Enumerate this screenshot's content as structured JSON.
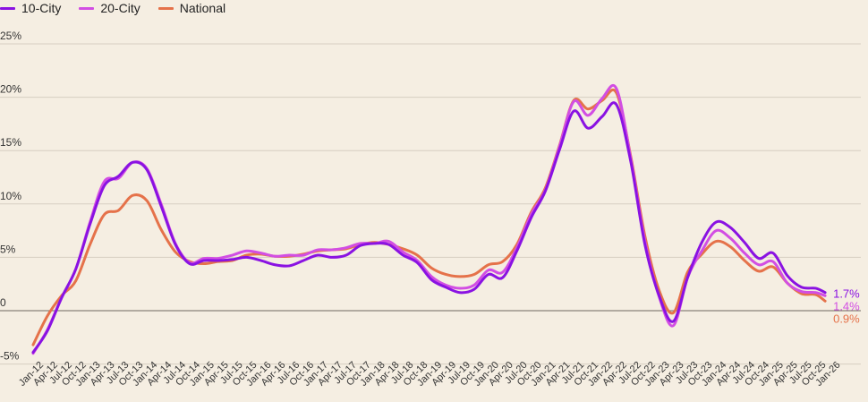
{
  "chart_data": {
    "type": "line",
    "title": "",
    "xlabel": "",
    "ylabel": "",
    "ylim": [
      -5,
      25
    ],
    "y_ticks": [
      "25%",
      "20%",
      "15%",
      "10%",
      "5%",
      "0",
      "-5%"
    ],
    "y_tick_values": [
      25,
      20,
      15,
      10,
      5,
      0,
      -5
    ],
    "x_tick_labels": [
      "Jan-12",
      "Apr-12",
      "Jul-12",
      "Oct-12",
      "Jan-13",
      "Apr-13",
      "Jul-13",
      "Oct-13",
      "Jan-14",
      "Apr-14",
      "Jul-14",
      "Oct-14",
      "Jan-15",
      "Apr-15",
      "Jul-15",
      "Oct-15",
      "Jan-16",
      "Apr-16",
      "Jul-16",
      "Oct-16",
      "Jan-17",
      "Apr-17",
      "Jul-17",
      "Oct-17",
      "Jan-18",
      "Apr-18",
      "Jul-18",
      "Oct-18",
      "Jan-19",
      "Apr-19",
      "Jul-19",
      "Oct-19",
      "Jan-20",
      "Apr-20",
      "Jul-20",
      "Oct-20",
      "Jan-21",
      "Apr-21",
      "Jul-21",
      "Oct-21",
      "Jan-22",
      "Apr-22",
      "Jul-22",
      "Oct-22",
      "Jan-23",
      "Apr-23",
      "Jul-23",
      "Oct-23",
      "Jan-24",
      "Apr-24",
      "Jul-24",
      "Oct-24",
      "Jan-25",
      "Apr-25",
      "Jul-25",
      "Oct-25",
      "Jan-26"
    ],
    "x": [
      "Jan-12",
      "Apr-12",
      "Jul-12",
      "Oct-12",
      "Jan-13",
      "Apr-13",
      "Jul-13",
      "Oct-13",
      "Jan-14",
      "Apr-14",
      "Jul-14",
      "Oct-14",
      "Jan-15",
      "Apr-15",
      "Jul-15",
      "Oct-15",
      "Jan-16",
      "Apr-16",
      "Jul-16",
      "Oct-16",
      "Jan-17",
      "Apr-17",
      "Jul-17",
      "Oct-17",
      "Jan-18",
      "Apr-18",
      "Jul-18",
      "Oct-18",
      "Jan-19",
      "Apr-19",
      "Jul-19",
      "Oct-19",
      "Jan-20",
      "Apr-20",
      "Jul-20",
      "Oct-20",
      "Jan-21",
      "Apr-21",
      "Jul-21",
      "Oct-21",
      "Jan-22",
      "Apr-22",
      "Jul-22",
      "Oct-22",
      "Jan-23",
      "Apr-23",
      "Jul-23",
      "Oct-23",
      "Jan-24",
      "Apr-24",
      "Jul-24",
      "Oct-24",
      "Jan-25",
      "Apr-25",
      "Jul-25",
      "Oct-25",
      "Dec-25"
    ],
    "grid": true,
    "legend_position": "top-left",
    "series": [
      {
        "name": "10-City",
        "color": "#8a12e2",
        "end_label": "1.7%",
        "values": [
          -3.9,
          -1.9,
          1.2,
          3.9,
          8.1,
          11.7,
          12.6,
          13.9,
          13.2,
          9.8,
          6.2,
          4.4,
          4.7,
          4.7,
          4.8,
          5.0,
          4.7,
          4.3,
          4.2,
          4.7,
          5.2,
          5.0,
          5.2,
          6.1,
          6.3,
          6.2,
          5.2,
          4.5,
          2.9,
          2.2,
          1.7,
          2.0,
          3.4,
          3.1,
          5.6,
          8.7,
          11.2,
          15.1,
          18.7,
          17.1,
          18.2,
          19.3,
          14.0,
          6.2,
          1.4,
          -1.0,
          3.1,
          6.4,
          8.3,
          7.8,
          6.4,
          4.9,
          5.4,
          3.3,
          2.2,
          2.1,
          1.7
        ]
      },
      {
        "name": "20-City",
        "color": "#d24ee3",
        "end_label": "1.4%",
        "values": [
          -4.0,
          -1.8,
          1.2,
          3.9,
          8.3,
          12.1,
          12.4,
          13.9,
          13.3,
          10.0,
          6.3,
          4.5,
          4.9,
          4.9,
          5.2,
          5.6,
          5.4,
          5.1,
          5.2,
          5.2,
          5.7,
          5.7,
          5.9,
          6.3,
          6.3,
          6.5,
          5.5,
          4.7,
          3.2,
          2.4,
          2.1,
          2.4,
          3.8,
          3.6,
          5.9,
          9.0,
          11.3,
          15.4,
          19.6,
          18.3,
          19.9,
          20.8,
          14.3,
          6.5,
          1.3,
          -1.4,
          3.1,
          5.6,
          7.5,
          6.8,
          5.4,
          4.3,
          4.6,
          2.6,
          1.8,
          1.7,
          1.4
        ]
      },
      {
        "name": "National",
        "color": "#e5724a",
        "end_label": "0.9%",
        "values": [
          -3.2,
          -0.5,
          1.4,
          2.8,
          6.2,
          9.0,
          9.4,
          10.8,
          10.3,
          7.6,
          5.5,
          4.6,
          4.4,
          4.6,
          4.7,
          5.2,
          5.3,
          5.1,
          5.1,
          5.3,
          5.6,
          5.7,
          5.8,
          6.2,
          6.4,
          6.2,
          5.8,
          5.2,
          4.0,
          3.4,
          3.2,
          3.4,
          4.3,
          4.6,
          6.2,
          9.2,
          11.5,
          15.5,
          19.7,
          18.9,
          19.7,
          20.4,
          14.5,
          7.0,
          1.9,
          -0.2,
          3.6,
          5.3,
          6.5,
          6.0,
          4.7,
          3.7,
          4.1,
          2.6,
          1.6,
          1.5,
          0.9
        ]
      }
    ]
  },
  "legend": {
    "items": [
      {
        "label": "10-City",
        "color": "#8a12e2"
      },
      {
        "label": "20-City",
        "color": "#d24ee3"
      },
      {
        "label": "National",
        "color": "#e5724a"
      }
    ]
  }
}
